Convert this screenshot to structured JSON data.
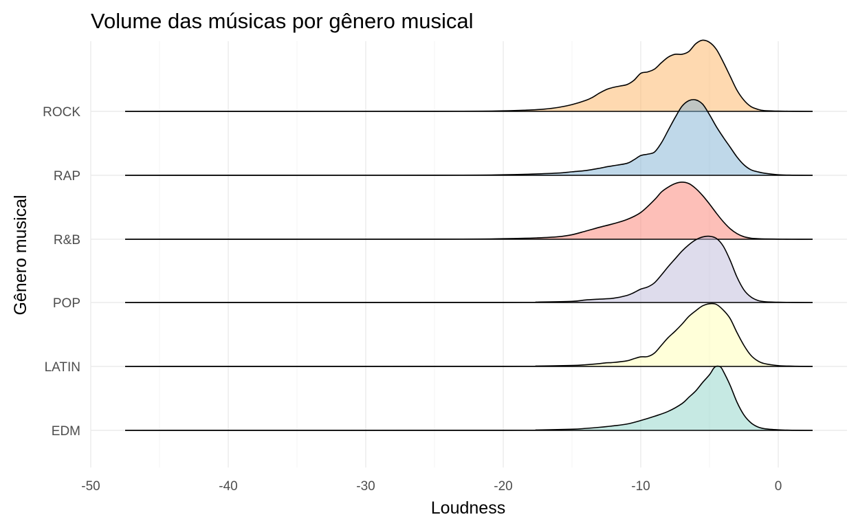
{
  "chart_data": {
    "type": "area",
    "subtype": "ridgeline-density",
    "title": "Volume das músicas por gênero musical",
    "xlabel": "Loudness",
    "ylabel": "Gênero musical",
    "xlim": [
      -50,
      5
    ],
    "x_ticks": [
      -50,
      -40,
      -30,
      -20,
      -10,
      0
    ],
    "x_tick_labels": [
      "-50",
      "-40",
      "-30",
      "-20",
      "-10",
      "0"
    ],
    "support": [
      -47.5,
      2.5
    ],
    "grid": true,
    "legend": "none",
    "categories": [
      "EDM",
      "LATIN",
      "POP",
      "R&B",
      "RAP",
      "ROCK"
    ],
    "series": [
      {
        "category": "EDM",
        "color": "#8DD3C7",
        "x": [
          -47.5,
          -20,
          -17.5,
          -15,
          -14,
          -13,
          -12,
          -11,
          -10,
          -9,
          -8,
          -7,
          -6.5,
          -6,
          -5.5,
          -5,
          -4.7,
          -4.5,
          -4.2,
          -4,
          -3.5,
          -3,
          -2.5,
          -2,
          -1.5,
          -1,
          0,
          1,
          2.5
        ],
        "y": [
          0,
          0.001,
          0.003,
          0.008,
          0.014,
          0.022,
          0.032,
          0.045,
          0.07,
          0.1,
          0.135,
          0.19,
          0.235,
          0.28,
          0.34,
          0.395,
          0.44,
          0.455,
          0.45,
          0.42,
          0.32,
          0.2,
          0.11,
          0.055,
          0.025,
          0.012,
          0.004,
          0.001,
          0
        ]
      },
      {
        "category": "LATIN",
        "color": "#FFFFB3",
        "x": [
          -47.5,
          -20,
          -17.5,
          -15,
          -14,
          -13,
          -12.5,
          -12,
          -11,
          -10.5,
          -10,
          -9.5,
          -9,
          -8.5,
          -8,
          -7.5,
          -7,
          -6.5,
          -6,
          -5.5,
          -5,
          -4.5,
          -4,
          -3.5,
          -3,
          -2.5,
          -2,
          -1.5,
          -1,
          0,
          1,
          2.5
        ],
        "y": [
          0,
          0.001,
          0.003,
          0.007,
          0.012,
          0.02,
          0.026,
          0.028,
          0.04,
          0.055,
          0.068,
          0.07,
          0.095,
          0.15,
          0.205,
          0.25,
          0.3,
          0.355,
          0.395,
          0.43,
          0.445,
          0.44,
          0.4,
          0.34,
          0.24,
          0.15,
          0.08,
          0.04,
          0.02,
          0.006,
          0.002,
          0
        ]
      },
      {
        "category": "POP",
        "color": "#BEBADA",
        "x": [
          -47.5,
          -20,
          -17.5,
          -15,
          -14,
          -13,
          -12,
          -11,
          -10.5,
          -10,
          -9.5,
          -9,
          -8.5,
          -8,
          -7.5,
          -7,
          -6.5,
          -6,
          -5.5,
          -5,
          -4.5,
          -4,
          -3.5,
          -3,
          -2.5,
          -2,
          -1.5,
          -1,
          0,
          1,
          2.5
        ],
        "y": [
          0,
          0.001,
          0.003,
          0.008,
          0.018,
          0.024,
          0.03,
          0.05,
          0.07,
          0.095,
          0.11,
          0.14,
          0.195,
          0.255,
          0.31,
          0.365,
          0.41,
          0.445,
          0.465,
          0.47,
          0.455,
          0.4,
          0.3,
          0.18,
          0.09,
          0.04,
          0.015,
          0.006,
          0.002,
          0.001,
          0
        ]
      },
      {
        "category": "R&B",
        "color": "#FB8072",
        "x": [
          -47.5,
          -25,
          -20,
          -17.5,
          -16,
          -15,
          -14,
          -13,
          -12,
          -11,
          -10,
          -9,
          -8.5,
          -8,
          -7.5,
          -7,
          -6.5,
          -6,
          -5.5,
          -5,
          -4.5,
          -4,
          -3.5,
          -3,
          -2.5,
          -2,
          -1.5,
          -1,
          0,
          1,
          2.5
        ],
        "y": [
          0,
          0.001,
          0.004,
          0.01,
          0.018,
          0.032,
          0.058,
          0.085,
          0.11,
          0.14,
          0.19,
          0.28,
          0.335,
          0.37,
          0.395,
          0.405,
          0.395,
          0.36,
          0.31,
          0.25,
          0.185,
          0.125,
          0.075,
          0.04,
          0.018,
          0.008,
          0.004,
          0.002,
          0.001,
          0,
          0
        ]
      },
      {
        "category": "RAP",
        "color": "#80B1D3",
        "x": [
          -47.5,
          -25,
          -20,
          -17.5,
          -16,
          -15,
          -14,
          -13,
          -12.5,
          -12,
          -11,
          -10.5,
          -10,
          -9.5,
          -9,
          -8.5,
          -8,
          -7.5,
          -7,
          -6.5,
          -6,
          -5.5,
          -5,
          -4.5,
          -4,
          -3.5,
          -3,
          -2.5,
          -2,
          -1.5,
          -1,
          0,
          1,
          2.5
        ],
        "y": [
          0,
          0.001,
          0.004,
          0.01,
          0.016,
          0.025,
          0.034,
          0.05,
          0.06,
          0.068,
          0.085,
          0.11,
          0.14,
          0.15,
          0.165,
          0.23,
          0.32,
          0.41,
          0.49,
          0.53,
          0.535,
          0.505,
          0.43,
          0.345,
          0.27,
          0.2,
          0.13,
          0.075,
          0.04,
          0.025,
          0.015,
          0.004,
          0.001,
          0
        ]
      },
      {
        "category": "ROCK",
        "color": "#FDB462",
        "x": [
          -47.5,
          -25,
          -20,
          -18,
          -17,
          -16,
          -15,
          -14,
          -13.5,
          -13,
          -12.5,
          -12,
          -11.5,
          -11,
          -10.5,
          -10,
          -9.5,
          -9,
          -8.5,
          -8,
          -7.5,
          -7,
          -6.5,
          -6,
          -5.5,
          -5,
          -4.5,
          -4,
          -3.5,
          -3,
          -2.5,
          -2,
          -1.5,
          -1,
          0,
          1,
          2.5
        ],
        "y": [
          0,
          0.001,
          0.004,
          0.01,
          0.016,
          0.028,
          0.048,
          0.078,
          0.1,
          0.13,
          0.155,
          0.17,
          0.18,
          0.19,
          0.22,
          0.27,
          0.28,
          0.3,
          0.345,
          0.385,
          0.405,
          0.405,
          0.425,
          0.48,
          0.505,
          0.49,
          0.44,
          0.35,
          0.25,
          0.15,
          0.08,
          0.035,
          0.015,
          0.005,
          0.002,
          0.001,
          0
        ]
      }
    ]
  }
}
